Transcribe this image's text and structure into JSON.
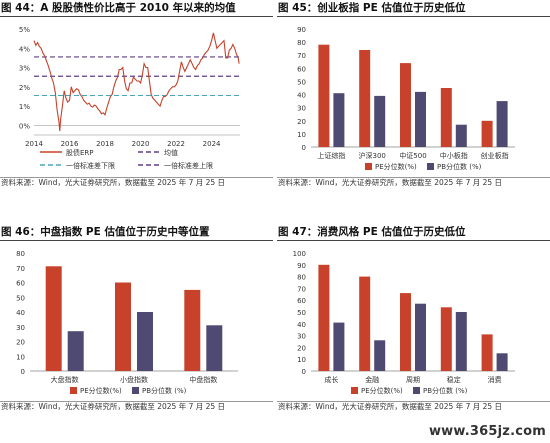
{
  "source_note": "资料来源：Wind，光大证券研究所，数据截至 2025 年 7 月 25 日",
  "watermark": "www.365jz.com",
  "colors": {
    "red": "#c8412a",
    "navy": "#4e4a72",
    "cyan": "#4aa6b6",
    "purple": "#5c3f86",
    "grid": "#e2e2e2",
    "axis": "#888888"
  },
  "chart_data": [
    {
      "id": "fig44",
      "type": "line",
      "title": "图 44：A 股股债性价比高于 2010 年以来的均值",
      "x_ticks": [
        "2014",
        "2016",
        "2018",
        "2020",
        "2022",
        "2024"
      ],
      "y_ticks": [
        "0%",
        "1%",
        "2%",
        "3%",
        "4%",
        "5%"
      ],
      "ylim": [
        -0.5,
        5.0
      ],
      "xlim": [
        2014.0,
        2025.6
      ],
      "series": [
        {
          "name": "股债ERP",
          "points": [
            [
              2014.0,
              4.4
            ],
            [
              2014.1,
              4.15
            ],
            [
              2014.2,
              4.3
            ],
            [
              2014.3,
              4.1
            ],
            [
              2014.4,
              4.0
            ],
            [
              2014.5,
              3.75
            ],
            [
              2014.6,
              3.6
            ],
            [
              2014.7,
              3.35
            ],
            [
              2014.8,
              3.1
            ],
            [
              2014.9,
              2.8
            ],
            [
              2015.0,
              2.45
            ],
            [
              2015.1,
              2.2
            ],
            [
              2015.2,
              1.7
            ],
            [
              2015.3,
              0.8
            ],
            [
              2015.4,
              0.2
            ],
            [
              2015.45,
              -0.3
            ],
            [
              2015.5,
              0.3
            ],
            [
              2015.6,
              1.0
            ],
            [
              2015.7,
              1.8
            ],
            [
              2015.8,
              1.4
            ],
            [
              2015.9,
              1.2
            ],
            [
              2016.0,
              1.3
            ],
            [
              2016.1,
              2.0
            ],
            [
              2016.2,
              1.7
            ],
            [
              2016.3,
              1.8
            ],
            [
              2016.4,
              1.9
            ],
            [
              2016.5,
              1.85
            ],
            [
              2016.6,
              1.6
            ],
            [
              2016.7,
              1.5
            ],
            [
              2016.8,
              1.3
            ],
            [
              2016.9,
              1.2
            ],
            [
              2017.0,
              1.1
            ],
            [
              2017.1,
              1.15
            ],
            [
              2017.2,
              1.0
            ],
            [
              2017.3,
              0.95
            ],
            [
              2017.4,
              1.05
            ],
            [
              2017.5,
              1.0
            ],
            [
              2017.6,
              0.85
            ],
            [
              2017.7,
              0.75
            ],
            [
              2017.8,
              0.6
            ],
            [
              2017.9,
              0.65
            ],
            [
              2018.0,
              0.55
            ],
            [
              2018.1,
              0.9
            ],
            [
              2018.2,
              1.2
            ],
            [
              2018.3,
              1.5
            ],
            [
              2018.4,
              1.6
            ],
            [
              2018.5,
              2.0
            ],
            [
              2018.6,
              2.3
            ],
            [
              2018.7,
              2.5
            ],
            [
              2018.8,
              2.9
            ],
            [
              2018.9,
              2.9
            ],
            [
              2019.0,
              3.0
            ],
            [
              2019.1,
              2.3
            ],
            [
              2019.2,
              1.9
            ],
            [
              2019.3,
              1.8
            ],
            [
              2019.4,
              2.2
            ],
            [
              2019.5,
              2.2
            ],
            [
              2019.6,
              2.5
            ],
            [
              2019.7,
              2.4
            ],
            [
              2019.8,
              2.3
            ],
            [
              2019.9,
              2.3
            ],
            [
              2020.0,
              2.2
            ],
            [
              2020.1,
              2.6
            ],
            [
              2020.2,
              3.2
            ],
            [
              2020.3,
              3.0
            ],
            [
              2020.4,
              3.0
            ],
            [
              2020.5,
              2.3
            ],
            [
              2020.6,
              1.6
            ],
            [
              2020.7,
              1.4
            ],
            [
              2020.8,
              1.3
            ],
            [
              2020.9,
              1.2
            ],
            [
              2021.0,
              1.1
            ],
            [
              2021.1,
              1.0
            ],
            [
              2021.2,
              1.3
            ],
            [
              2021.3,
              1.5
            ],
            [
              2021.4,
              1.5
            ],
            [
              2021.5,
              1.6
            ],
            [
              2021.6,
              1.8
            ],
            [
              2021.7,
              1.9
            ],
            [
              2021.8,
              2.0
            ],
            [
              2021.9,
              2.0
            ],
            [
              2022.0,
              2.1
            ],
            [
              2022.1,
              2.3
            ],
            [
              2022.2,
              2.8
            ],
            [
              2022.3,
              3.3
            ],
            [
              2022.4,
              3.0
            ],
            [
              2022.5,
              2.8
            ],
            [
              2022.6,
              3.0
            ],
            [
              2022.7,
              3.2
            ],
            [
              2022.8,
              3.4
            ],
            [
              2022.9,
              3.2
            ],
            [
              2023.0,
              3.0
            ],
            [
              2023.1,
              2.9
            ],
            [
              2023.2,
              3.1
            ],
            [
              2023.3,
              3.2
            ],
            [
              2023.4,
              3.4
            ],
            [
              2023.5,
              3.5
            ],
            [
              2023.6,
              3.7
            ],
            [
              2023.7,
              3.8
            ],
            [
              2023.8,
              3.9
            ],
            [
              2023.9,
              4.1
            ],
            [
              2024.0,
              4.4
            ],
            [
              2024.1,
              4.8
            ],
            [
              2024.2,
              4.4
            ],
            [
              2024.3,
              4.0
            ],
            [
              2024.4,
              4.1
            ],
            [
              2024.5,
              4.2
            ],
            [
              2024.6,
              4.3
            ],
            [
              2024.7,
              4.4
            ],
            [
              2024.8,
              3.5
            ],
            [
              2024.9,
              3.5
            ],
            [
              2025.0,
              3.9
            ],
            [
              2025.1,
              4.0
            ],
            [
              2025.2,
              4.2
            ],
            [
              2025.3,
              4.0
            ],
            [
              2025.4,
              3.7
            ],
            [
              2025.5,
              3.5
            ],
            [
              2025.55,
              3.2
            ]
          ]
        },
        {
          "name": "均值",
          "value": 2.55
        },
        {
          "name": "一倍标准差上限",
          "value": 3.55
        },
        {
          "name": "一倍标准差下限",
          "value": 1.55
        }
      ]
    },
    {
      "id": "fig45",
      "type": "bar",
      "title": "图 45：创业板指 PE 估值位于历史低位",
      "categories": [
        "上证综指",
        "沪深300",
        "中证500",
        "中小板指",
        "创业板指"
      ],
      "y_ticks": [
        0,
        10,
        20,
        30,
        40,
        50,
        60,
        70,
        80,
        90
      ],
      "ylim": [
        0,
        90
      ],
      "series": [
        {
          "name": "PE分位数(%)",
          "values": [
            78,
            74,
            64,
            45,
            20
          ]
        },
        {
          "name": "PB分位数 (%)",
          "values": [
            41,
            39,
            42,
            17,
            35
          ]
        }
      ]
    },
    {
      "id": "fig46",
      "type": "bar",
      "title": "图 46：中盘指数 PE 估值位于历史中等位置",
      "categories": [
        "大盘指数",
        "小盘指数",
        "中盘指数"
      ],
      "y_ticks": [
        0,
        10,
        20,
        30,
        40,
        50,
        60,
        70,
        80
      ],
      "ylim": [
        0,
        80
      ],
      "series": [
        {
          "name": "PE分位数(%)",
          "values": [
            71,
            60,
            55
          ]
        },
        {
          "name": "PB分位数 (%)",
          "values": [
            27,
            40,
            31
          ]
        }
      ]
    },
    {
      "id": "fig47",
      "type": "bar",
      "title": "图 47：消费风格 PE 估值位于历史低位",
      "categories": [
        "成长",
        "金融",
        "周期",
        "稳定",
        "消费"
      ],
      "y_ticks": [
        0,
        10,
        20,
        30,
        40,
        50,
        60,
        70,
        80,
        90,
        100
      ],
      "ylim": [
        0,
        100
      ],
      "series": [
        {
          "name": "PE分位数(%)",
          "values": [
            90,
            80,
            66,
            54,
            31
          ]
        },
        {
          "name": "PB分位数 (%)",
          "values": [
            41,
            26,
            57,
            50,
            15
          ]
        }
      ]
    }
  ]
}
